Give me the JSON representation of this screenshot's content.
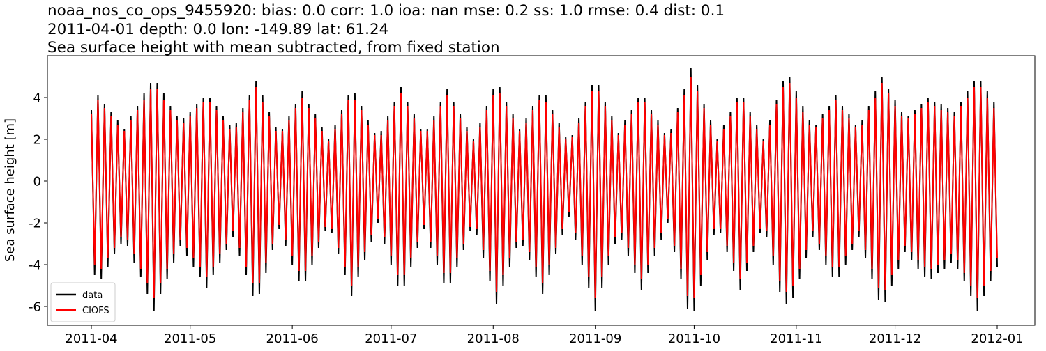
{
  "chart_data": {
    "type": "line",
    "title": [
      "noaa_nos_co_ops_9455920: bias: 0.0  corr: 1.0  ioa: nan  mse: 0.2  ss: 1.0  rmse: 0.4  dist: 0.1",
      "2011-04-01 depth: 0.0 lon: -149.89 lat: 61.24",
      "Sea surface height with mean subtracted, from fixed station"
    ],
    "ylabel": "Sea surface height [m]",
    "xticks": [
      "2011-04",
      "2011-05",
      "2011-06",
      "2011-07",
      "2011-08",
      "2011-09",
      "2011-10",
      "2011-11",
      "2011-12",
      "2012-01"
    ],
    "ylim": [
      -6.9,
      6.0
    ],
    "yticks": [
      -6,
      -4,
      -2,
      0,
      2,
      4
    ],
    "legend": "lower left",
    "series": [
      {
        "name": "data",
        "color": "#000000",
        "values": [
          3.4,
          -4.5,
          4.1,
          -4.7,
          3.7,
          -4.1,
          3.3,
          -3.5,
          2.9,
          -3.0,
          2.5,
          -3.1,
          3.1,
          -3.9,
          3.6,
          -4.6,
          4.2,
          -5.4,
          4.7,
          -6.2,
          4.7,
          -5.4,
          4.2,
          -4.7,
          3.6,
          -3.9,
          3.1,
          -3.1,
          3.0,
          -3.6,
          3.3,
          -4.1,
          3.7,
          -4.6,
          4.0,
          -5.1,
          4.0,
          -4.5,
          3.6,
          -3.9,
          3.1,
          -3.3,
          2.7,
          -2.7,
          2.8,
          -3.6,
          3.5,
          -4.5,
          4.1,
          -5.5,
          4.8,
          -5.4,
          4.1,
          -4.4,
          3.3,
          -3.3,
          2.6,
          -2.3,
          2.5,
          -3.1,
          3.1,
          -4.0,
          3.7,
          -4.8,
          4.3,
          -4.8,
          3.7,
          -4.0,
          3.2,
          -3.2,
          2.6,
          -2.4,
          2.0,
          -2.5,
          2.7,
          -3.5,
          3.4,
          -4.5,
          4.1,
          -5.5,
          4.2,
          -4.6,
          3.6,
          -3.8,
          2.9,
          -2.9,
          2.3,
          -2.0,
          2.4,
          -3.0,
          3.1,
          -4.0,
          3.8,
          -5.0,
          4.5,
          -5.0,
          3.8,
          -4.1,
          3.2,
          -3.2,
          2.5,
          -2.3,
          2.5,
          -3.2,
          3.1,
          -4.0,
          3.8,
          -4.9,
          4.4,
          -4.9,
          3.8,
          -4.1,
          3.2,
          -3.3,
          2.6,
          -2.4,
          2.0,
          -2.6,
          2.8,
          -3.7,
          3.6,
          -4.8,
          4.4,
          -5.9,
          4.5,
          -5.0,
          3.8,
          -4.1,
          3.2,
          -3.2,
          2.5,
          -3.1,
          3.0,
          -3.8,
          3.6,
          -4.6,
          4.1,
          -5.4,
          4.1,
          -4.5,
          3.4,
          -3.5,
          2.8,
          -2.6,
          2.1,
          -1.7,
          2.2,
          -2.8,
          3.0,
          -4.0,
          3.8,
          -5.1,
          4.6,
          -6.2,
          4.6,
          -5.1,
          3.8,
          -4.0,
          3.1,
          -3.0,
          2.3,
          -2.8,
          2.9,
          -3.6,
          3.4,
          -4.4,
          4.0,
          -5.2,
          4.0,
          -4.4,
          3.4,
          -3.6,
          2.9,
          -2.8,
          2.3,
          -2.0,
          2.5,
          -3.4,
          3.5,
          -4.7,
          4.4,
          -6.1,
          5.4,
          -6.2,
          4.6,
          -5.0,
          3.7,
          -3.8,
          2.9,
          -2.6,
          2.0,
          -2.5,
          2.7,
          -3.4,
          3.3,
          -4.3,
          4.0,
          -5.2,
          4.0,
          -4.3,
          3.3,
          -3.4,
          2.7,
          -2.5,
          2.0,
          -2.7,
          2.9,
          -4.0,
          3.9,
          -5.3,
          4.8,
          -5.9,
          5.0,
          -5.6,
          4.3,
          -4.7,
          3.6,
          -3.7,
          2.9,
          -2.7,
          2.7,
          -3.3,
          3.2,
          -4.0,
          3.6,
          -4.6,
          4.1,
          -4.6,
          3.6,
          -4.0,
          3.2,
          -3.3,
          2.7,
          -2.7,
          2.9,
          -3.7,
          3.6,
          -4.7,
          4.3,
          -5.7,
          5.0,
          -5.8,
          4.4,
          -5.0,
          3.9,
          -4.2,
          3.3,
          -3.4,
          3.1,
          -3.8,
          3.4,
          -4.2,
          3.7,
          -4.6,
          4.0,
          -4.7,
          3.8,
          -4.4,
          3.7,
          -4.2,
          3.5,
          -3.9,
          3.3,
          -4.2,
          3.8,
          -4.8,
          4.3,
          -5.5,
          4.8,
          -6.2,
          4.8,
          -5.5,
          4.3,
          -4.8,
          3.8,
          -4.1
        ]
      },
      {
        "name": "CIOFS",
        "color": "#ff0000",
        "values": [
          3.2,
          -4.0,
          3.9,
          -4.2,
          3.5,
          -3.7,
          3.1,
          -3.2,
          2.7,
          -2.7,
          2.4,
          -2.8,
          2.9,
          -3.5,
          3.4,
          -4.2,
          3.9,
          -4.9,
          4.4,
          -5.6,
          4.4,
          -4.9,
          3.9,
          -4.2,
          3.4,
          -3.5,
          2.9,
          -2.8,
          2.8,
          -3.2,
          3.1,
          -3.7,
          3.5,
          -4.1,
          3.8,
          -4.6,
          3.8,
          -4.1,
          3.4,
          -3.5,
          2.9,
          -3.0,
          2.5,
          -2.4,
          2.6,
          -3.2,
          3.3,
          -4.1,
          3.9,
          -4.9,
          4.5,
          -4.9,
          3.8,
          -3.9,
          3.1,
          -3.0,
          2.4,
          -2.1,
          2.4,
          -2.8,
          2.9,
          -3.6,
          3.5,
          -4.3,
          4.0,
          -4.3,
          3.5,
          -3.6,
          3.0,
          -2.9,
          2.4,
          -2.2,
          1.9,
          -2.3,
          2.5,
          -3.2,
          3.2,
          -4.1,
          3.9,
          -5.0,
          3.9,
          -4.1,
          3.4,
          -3.4,
          2.7,
          -2.6,
          2.2,
          -1.8,
          2.2,
          -2.7,
          2.9,
          -3.6,
          3.6,
          -4.5,
          4.2,
          -4.5,
          3.6,
          -3.7,
          3.0,
          -2.9,
          2.4,
          -2.1,
          2.4,
          -2.9,
          2.9,
          -3.6,
          3.6,
          -4.4,
          4.1,
          -4.4,
          3.6,
          -3.7,
          3.0,
          -3.0,
          2.4,
          -2.2,
          1.9,
          -2.3,
          2.6,
          -3.3,
          3.4,
          -4.3,
          4.1,
          -5.3,
          4.2,
          -4.5,
          3.6,
          -3.7,
          3.0,
          -2.9,
          2.4,
          -2.8,
          2.8,
          -3.4,
          3.4,
          -4.1,
          3.9,
          -4.9,
          3.8,
          -4.0,
          3.2,
          -3.2,
          2.6,
          -2.3,
          2.0,
          -1.5,
          2.1,
          -2.5,
          2.8,
          -3.6,
          3.6,
          -4.6,
          4.3,
          -5.6,
          4.3,
          -4.6,
          3.6,
          -3.6,
          2.9,
          -2.7,
          2.2,
          -2.5,
          2.7,
          -3.2,
          3.2,
          -4.0,
          3.8,
          -4.7,
          3.8,
          -4.0,
          3.2,
          -3.2,
          2.7,
          -2.5,
          2.2,
          -1.8,
          2.3,
          -3.1,
          3.3,
          -4.2,
          4.1,
          -5.5,
          5.0,
          -5.6,
          4.3,
          -4.5,
          3.5,
          -3.4,
          2.7,
          -2.3,
          1.9,
          -2.3,
          2.5,
          -3.1,
          3.1,
          -3.9,
          3.8,
          -4.7,
          3.8,
          -3.9,
          3.1,
          -3.1,
          2.5,
          -2.3,
          1.9,
          -2.4,
          2.7,
          -3.6,
          3.7,
          -4.8,
          4.5,
          -5.3,
          4.7,
          -5.0,
          4.0,
          -4.2,
          3.3,
          -3.3,
          2.7,
          -2.4,
          2.6,
          -3.0,
          3.0,
          -3.6,
          3.4,
          -4.1,
          3.9,
          -4.1,
          3.4,
          -3.6,
          3.0,
          -3.0,
          2.6,
          -2.4,
          2.7,
          -3.3,
          3.4,
          -4.2,
          4.0,
          -5.1,
          4.7,
          -5.2,
          4.2,
          -4.5,
          3.6,
          -3.8,
          3.1,
          -3.1,
          3.0,
          -3.4,
          3.2,
          -3.8,
          3.5,
          -4.1,
          3.8,
          -4.2,
          3.6,
          -4.0,
          3.4,
          -3.8,
          3.3,
          -3.5,
          3.1,
          -3.8,
          3.6,
          -4.4,
          4.0,
          -5.0,
          4.5,
          -5.6,
          4.5,
          -5.0,
          4.0,
          -4.3,
          3.5,
          -3.7
        ]
      }
    ]
  }
}
